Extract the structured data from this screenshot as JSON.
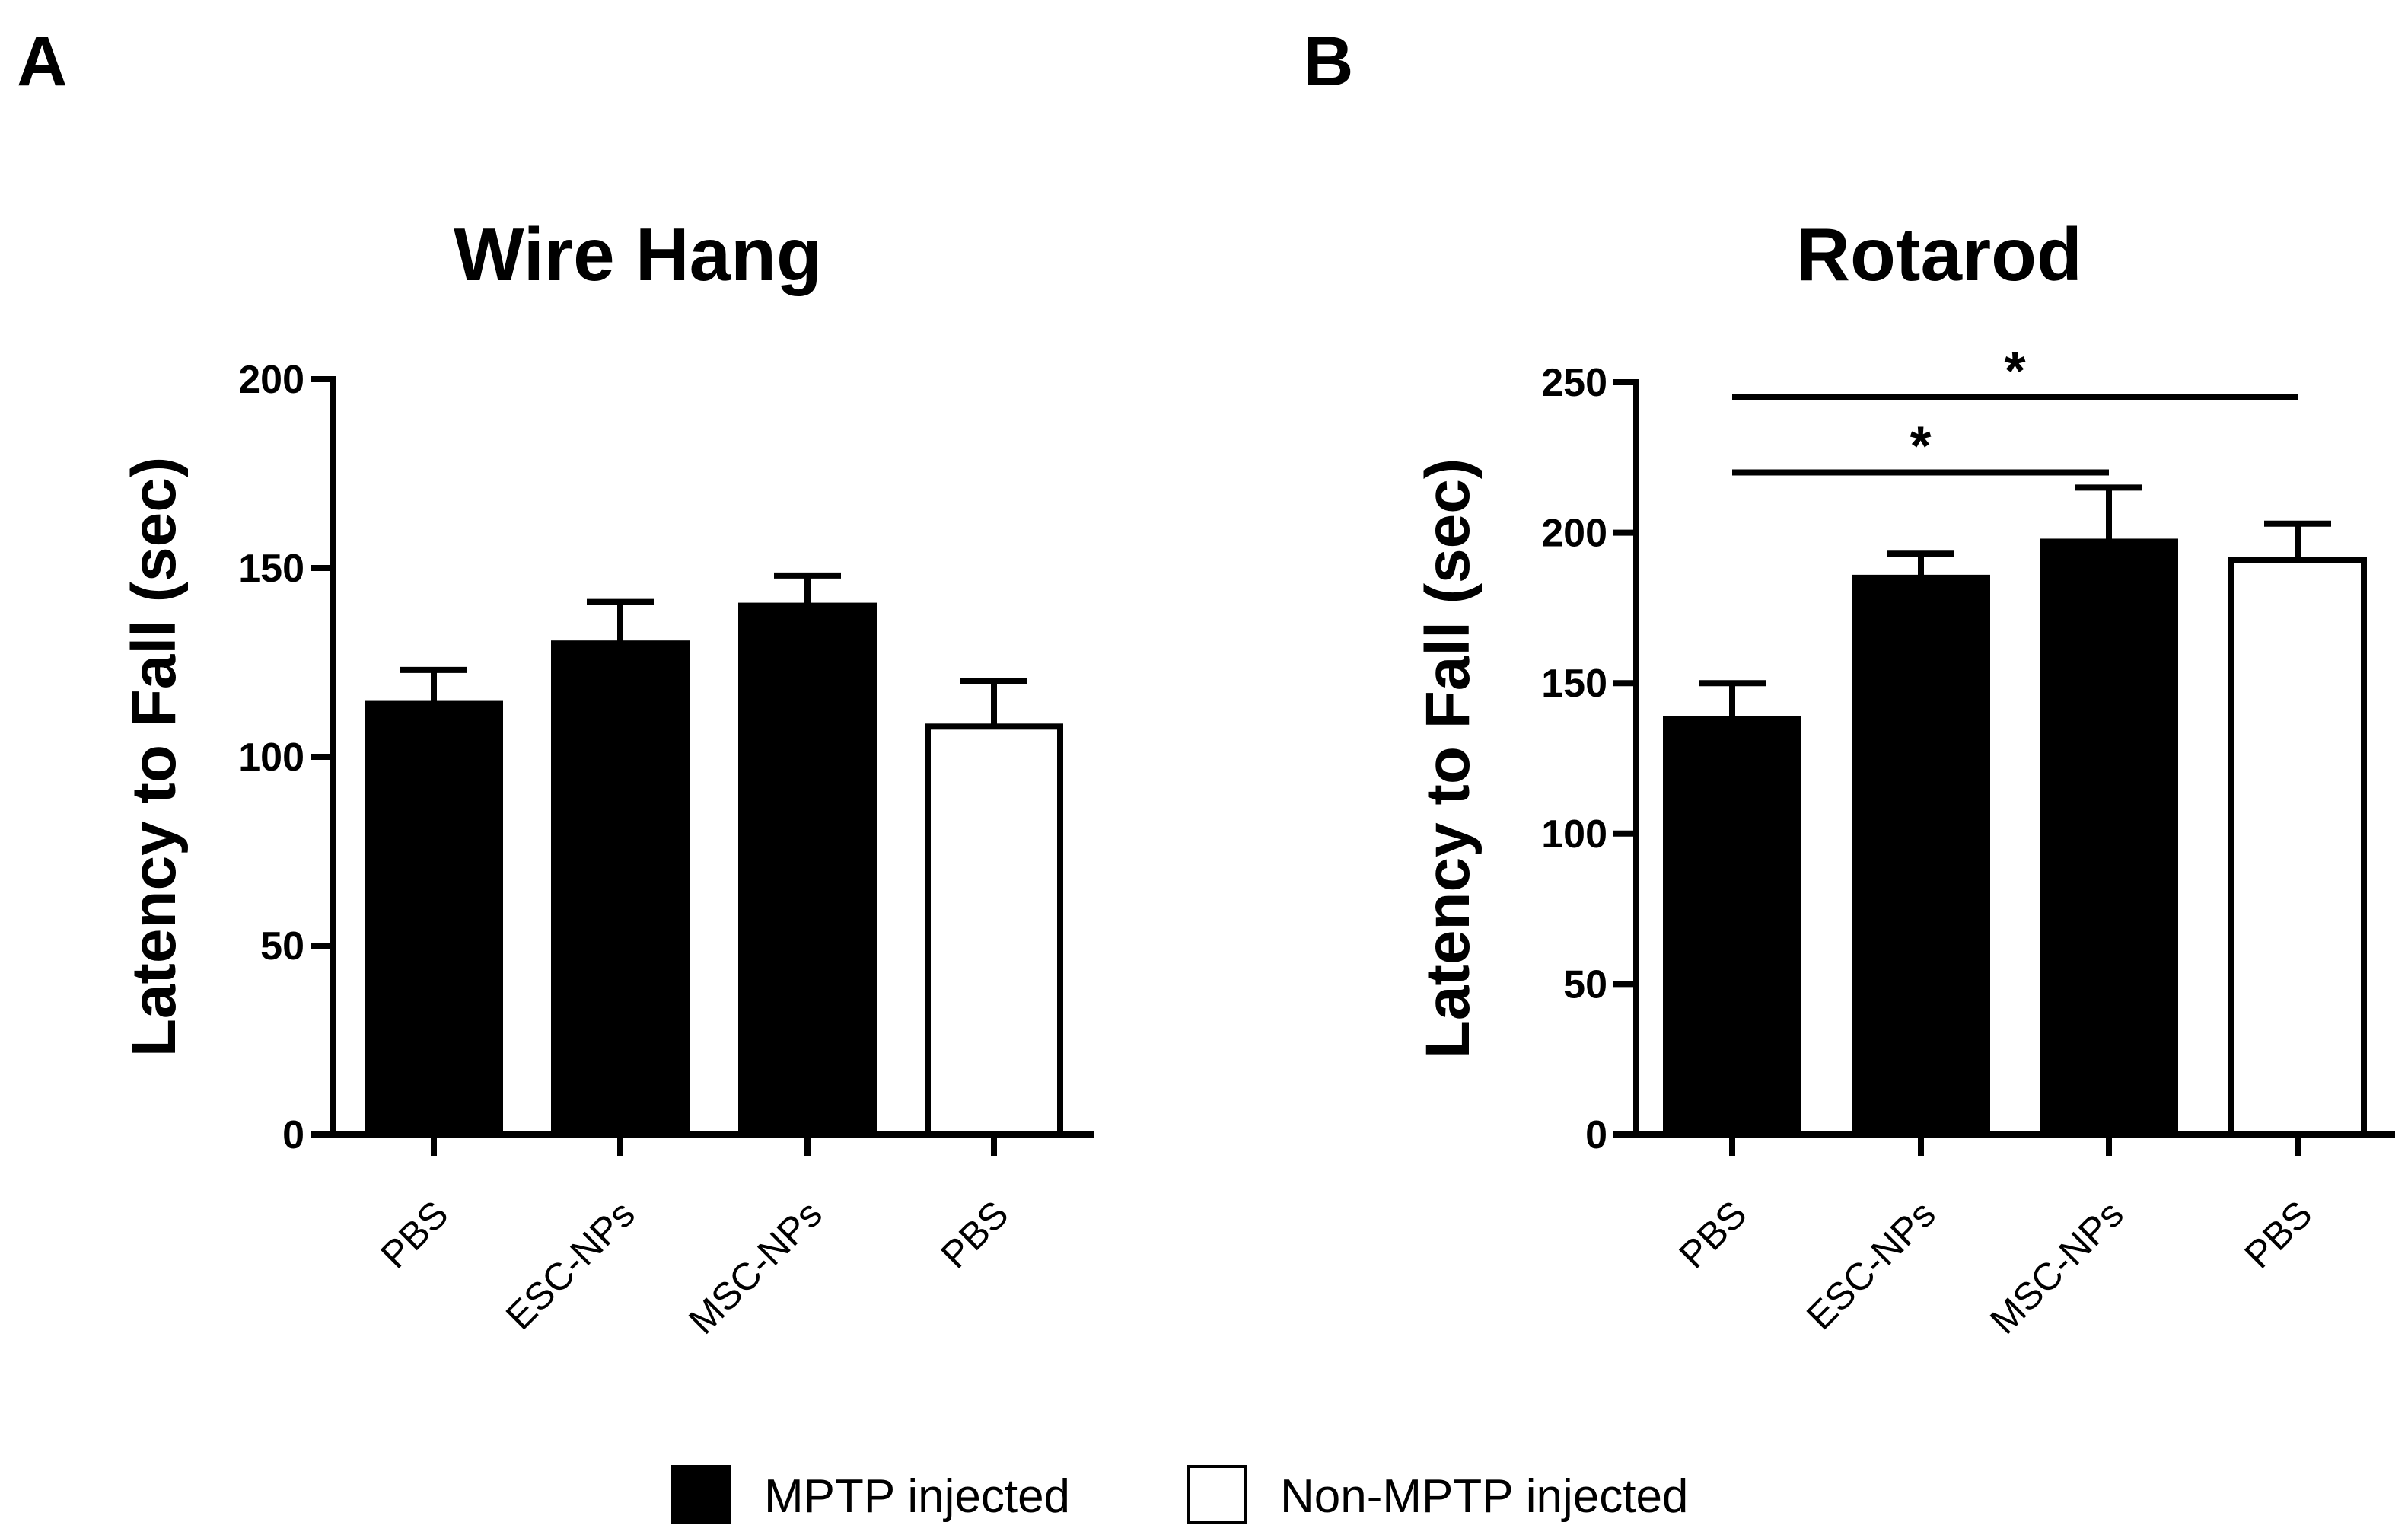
{
  "figure": {
    "legend": {
      "items": [
        {
          "label": "MPTP injected",
          "fill": "#000000"
        },
        {
          "label": "Non-MPTP injected",
          "fill": "#ffffff"
        }
      ]
    }
  },
  "chart_data": [
    {
      "panel": "A",
      "type": "bar",
      "title": "Wire Hang",
      "ylabel": "Latency to Fall (sec)",
      "xlabel": "",
      "ylim": [
        0,
        200
      ],
      "yticks": [
        0,
        50,
        100,
        150,
        200
      ],
      "categories": [
        "PBS",
        "ESC-NPs",
        "MSC-NPs",
        "PBS"
      ],
      "values": [
        114,
        130,
        140,
        108
      ],
      "errors": [
        9,
        11,
        8,
        12
      ],
      "groups": [
        "MPTP injected",
        "MPTP injected",
        "MPTP injected",
        "Non-MPTP injected"
      ],
      "significance": []
    },
    {
      "panel": "B",
      "type": "bar",
      "title": "Rotarod",
      "ylabel": "Latency to Fall (sec)",
      "xlabel": "",
      "ylim": [
        0,
        250
      ],
      "yticks": [
        0,
        50,
        100,
        150,
        200,
        250
      ],
      "categories": [
        "PBS",
        "ESC-NPs",
        "MSC-NPs",
        "PBS"
      ],
      "values": [
        138,
        185,
        197,
        191
      ],
      "errors": [
        12,
        8,
        18,
        12
      ],
      "groups": [
        "MPTP injected",
        "MPTP injected",
        "MPTP injected",
        "Non-MPTP injected"
      ],
      "significance": [
        {
          "from": 0,
          "to": 3,
          "label": "*",
          "y": 245
        },
        {
          "from": 0,
          "to": 2,
          "label": "*",
          "y": 220
        }
      ]
    }
  ]
}
